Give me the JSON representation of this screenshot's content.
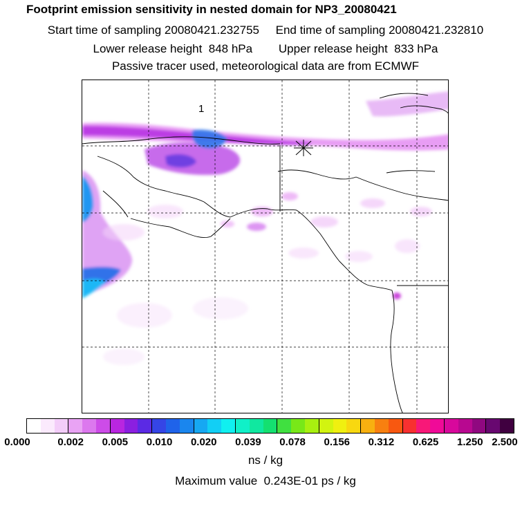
{
  "header": {
    "title": "Footprint emission sensitivity in nested domain for NP3_20080421",
    "line2": "Start time of sampling 20080421.232755     End time of sampling 20080421.232810",
    "line3": "Lower release height  848 hPa        Upper release height  833 hPa",
    "line4": "Passive tracer used, meteorological data are from ECMWF"
  },
  "map": {
    "label": "1",
    "release_marker": "asterisk",
    "grid": true,
    "plume_colors": [
      "#f0c8f5",
      "#e080f0",
      "#c040e8",
      "#8a20e0",
      "#3848e8",
      "#1890f0",
      "#18c0f8"
    ]
  },
  "colorbar": {
    "colors": [
      "#ffffff",
      "#fbeafd",
      "#f3cdf9",
      "#e9a3f4",
      "#dc78ee",
      "#cd4ce8",
      "#b926e0",
      "#8b1fe0",
      "#5b2ae4",
      "#3545e6",
      "#1f63ea",
      "#1a86ee",
      "#16a8f2",
      "#12cff5",
      "#10f0f0",
      "#10f0c8",
      "#10e8a0",
      "#14e070",
      "#40e040",
      "#78e818",
      "#a8f010",
      "#d2f410",
      "#f0f010",
      "#f8d810",
      "#f8b010",
      "#f88010",
      "#f85810",
      "#f83030",
      "#f81878",
      "#f00a98",
      "#d8089c",
      "#b80890",
      "#900880",
      "#680870",
      "#400040"
    ],
    "ticks": [
      "0.000",
      "0.002",
      "0.005",
      "0.010",
      "0.020",
      "0.039",
      "0.078",
      "0.156",
      "0.312",
      "0.625",
      "1.250",
      "2.500"
    ],
    "unit": "ns / kg",
    "max_value": "Maximum value  0.243E-01 ps / kg"
  }
}
